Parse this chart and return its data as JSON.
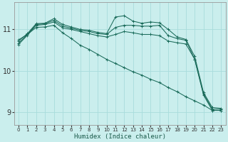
{
  "xlabel": "Humidex (Indice chaleur)",
  "ylabel": "",
  "xlim": [
    -0.5,
    23.5
  ],
  "ylim": [
    8.7,
    11.65
  ],
  "yticks": [
    9,
    10,
    11
  ],
  "xticks": [
    0,
    1,
    2,
    3,
    4,
    5,
    6,
    7,
    8,
    9,
    10,
    11,
    12,
    13,
    14,
    15,
    16,
    17,
    18,
    19,
    20,
    21,
    22,
    23
  ],
  "bg_color": "#caeeed",
  "grid_color": "#a8dcdc",
  "line_color": "#1a6b5a",
  "lines": [
    {
      "x": [
        0,
        1,
        2,
        3,
        4,
        5,
        6,
        7,
        8,
        9,
        10,
        11,
        12,
        13,
        14,
        15,
        16,
        17,
        18,
        19,
        20,
        21,
        22,
        23
      ],
      "y": [
        10.72,
        10.9,
        11.14,
        11.15,
        11.26,
        11.12,
        11.06,
        11.0,
        10.98,
        10.93,
        10.9,
        11.3,
        11.33,
        11.2,
        11.15,
        11.18,
        11.16,
        11.0,
        10.82,
        10.76,
        10.35,
        9.48,
        9.12,
        9.1
      ]
    },
    {
      "x": [
        0,
        1,
        2,
        3,
        4,
        5,
        6,
        7,
        8,
        9,
        10,
        11,
        12,
        13,
        14,
        15,
        16,
        17,
        18,
        19,
        20,
        21,
        22,
        23
      ],
      "y": [
        10.67,
        10.88,
        11.12,
        11.14,
        11.22,
        11.08,
        11.03,
        10.98,
        10.95,
        10.9,
        10.88,
        11.05,
        11.1,
        11.1,
        11.08,
        11.08,
        11.1,
        10.85,
        10.78,
        10.74,
        10.28,
        9.45,
        9.08,
        9.08
      ]
    },
    {
      "x": [
        0,
        1,
        2,
        3,
        4,
        5,
        6,
        7,
        8,
        9,
        10,
        11,
        12,
        13,
        14,
        15,
        16,
        17,
        18,
        19,
        20,
        21,
        22,
        23
      ],
      "y": [
        10.64,
        10.86,
        11.1,
        11.12,
        11.18,
        11.04,
        11.0,
        10.95,
        10.9,
        10.85,
        10.82,
        10.88,
        10.95,
        10.92,
        10.88,
        10.88,
        10.85,
        10.72,
        10.68,
        10.65,
        10.28,
        9.42,
        9.05,
        9.05
      ]
    },
    {
      "x": [
        0,
        1,
        2,
        3,
        4,
        5,
        6,
        7,
        8,
        9,
        10,
        11,
        12,
        13,
        14,
        15,
        16,
        17,
        18,
        19,
        20,
        21,
        22,
        23
      ],
      "y": [
        10.75,
        10.88,
        11.05,
        11.06,
        11.1,
        10.92,
        10.78,
        10.62,
        10.52,
        10.4,
        10.28,
        10.18,
        10.08,
        9.98,
        9.9,
        9.8,
        9.72,
        9.6,
        9.5,
        9.38,
        9.28,
        9.18,
        9.05,
        9.05
      ]
    }
  ]
}
